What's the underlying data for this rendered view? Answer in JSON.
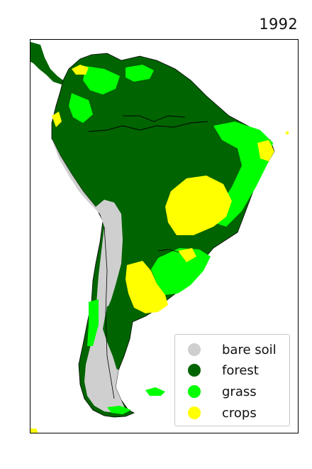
{
  "title": "1992",
  "legend": {
    "items": [
      {
        "label": "bare soil",
        "color": "#cfcfcf"
      },
      {
        "label": "forest",
        "color": "#006400"
      },
      {
        "label": "grass",
        "color": "#00ff00"
      },
      {
        "label": "crops",
        "color": "#ffff00"
      }
    ]
  },
  "colors": {
    "background": "#ffffff",
    "outline": "#000000",
    "bare_soil": "#cfcfcf",
    "forest": "#006400",
    "grass": "#00ff00",
    "crops": "#ffff00"
  }
}
